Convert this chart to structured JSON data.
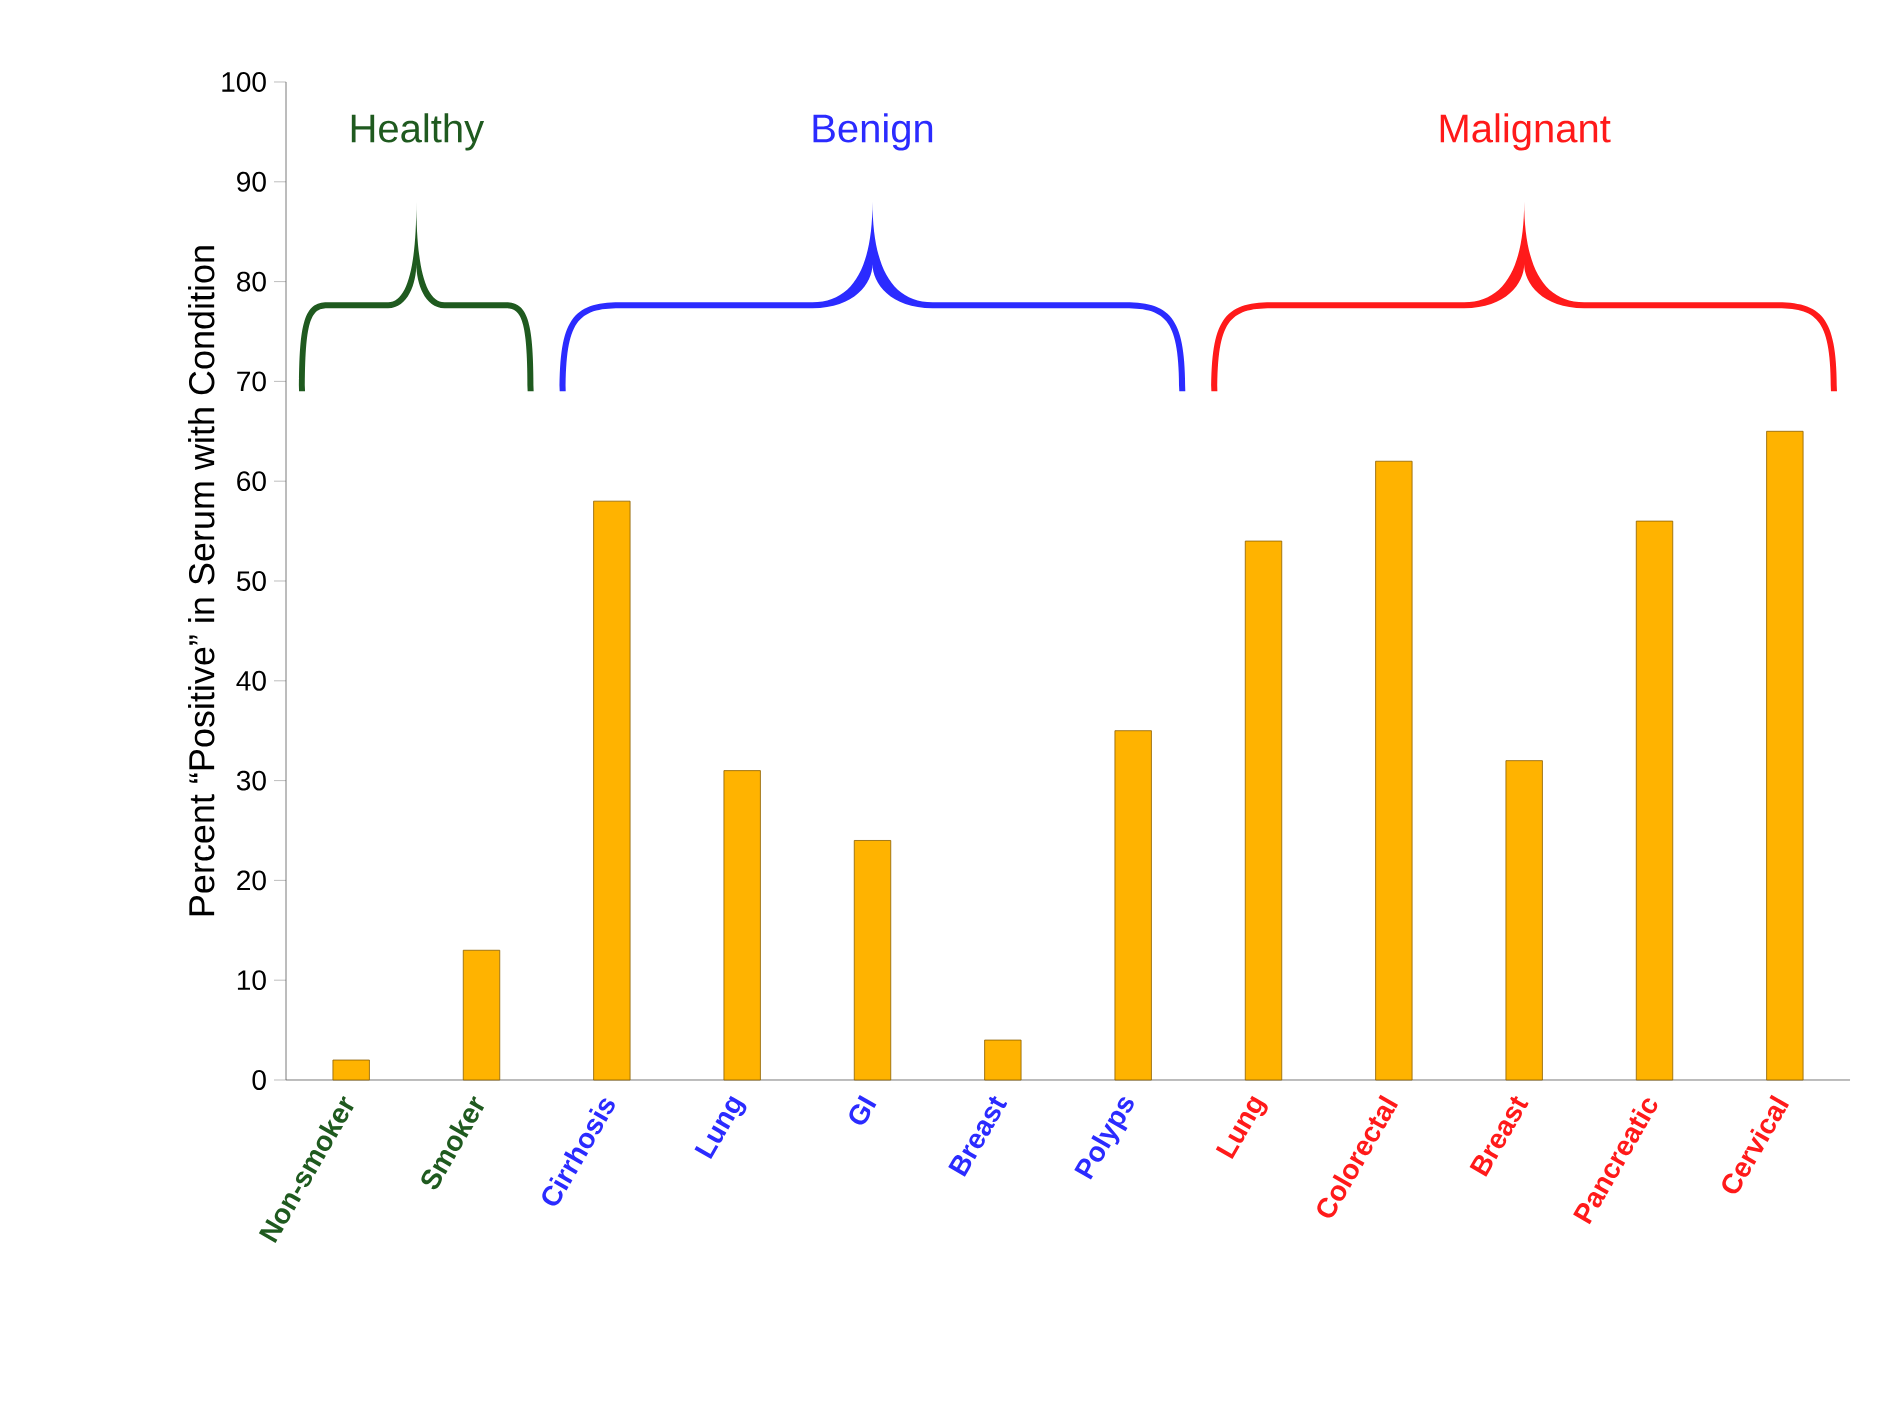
{
  "chart_data": {
    "type": "bar",
    "categories": [
      "Non-smoker",
      "Smoker",
      "Cirrhosis",
      "Lung",
      "GI",
      "Breast",
      "Polyps",
      "Lung",
      "Colorectal",
      "Breast",
      "Pancreatic",
      "Cervical"
    ],
    "values": [
      2,
      13,
      58,
      31,
      24,
      4,
      35,
      54,
      62,
      32,
      56,
      65
    ],
    "color": "#ffb300",
    "ylabel": "Percent “Positive” in Serum with Condition",
    "ylim": [
      0,
      100
    ],
    "yticks": [
      0,
      10,
      20,
      30,
      40,
      50,
      60,
      70,
      80,
      90,
      100
    ],
    "annotations": [
      "Healthy",
      "Benign",
      "Malignant"
    ],
    "grid": false
  }
}
